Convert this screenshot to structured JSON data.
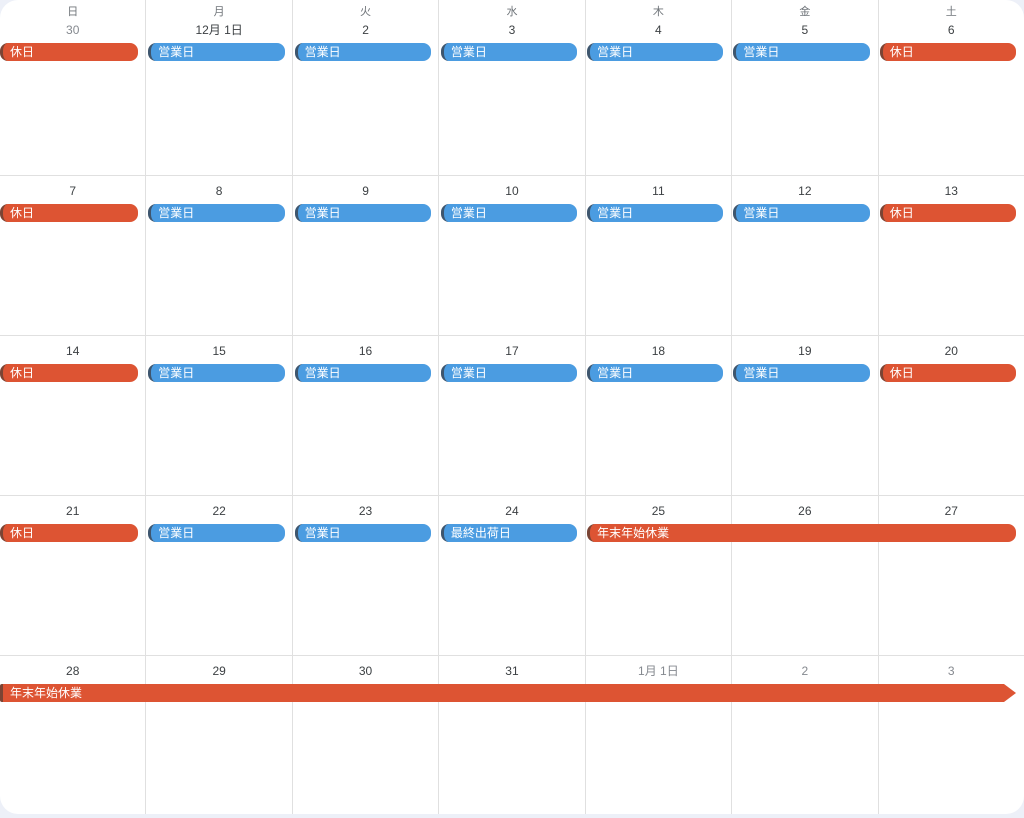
{
  "calendar": {
    "weekday_headers": [
      "日",
      "月",
      "火",
      "水",
      "木",
      "金",
      "土"
    ],
    "event_labels": {
      "holiday": "休日",
      "business_day": "営業日",
      "final_shipping_day": "最終出荷日",
      "year_end_holiday": "年末年始休業"
    },
    "weeks": [
      {
        "days": [
          {
            "date": "30",
            "out_of_month": true
          },
          {
            "date": "12月 1日",
            "out_of_month": false
          },
          {
            "date": "2",
            "out_of_month": false
          },
          {
            "date": "3",
            "out_of_month": false
          },
          {
            "date": "4",
            "out_of_month": false
          },
          {
            "date": "5",
            "out_of_month": false
          },
          {
            "date": "6",
            "out_of_month": false
          }
        ],
        "events": [
          {
            "label": "休日",
            "color": "orange",
            "col": 0,
            "span": 1
          },
          {
            "label": "営業日",
            "color": "blue",
            "col": 1,
            "span": 1
          },
          {
            "label": "営業日",
            "color": "blue",
            "col": 2,
            "span": 1
          },
          {
            "label": "営業日",
            "color": "blue",
            "col": 3,
            "span": 1
          },
          {
            "label": "営業日",
            "color": "blue",
            "col": 4,
            "span": 1
          },
          {
            "label": "営業日",
            "color": "blue",
            "col": 5,
            "span": 1
          },
          {
            "label": "休日",
            "color": "orange",
            "col": 6,
            "span": 1
          }
        ]
      },
      {
        "days": [
          {
            "date": "7",
            "out_of_month": false
          },
          {
            "date": "8",
            "out_of_month": false
          },
          {
            "date": "9",
            "out_of_month": false
          },
          {
            "date": "10",
            "out_of_month": false
          },
          {
            "date": "11",
            "out_of_month": false
          },
          {
            "date": "12",
            "out_of_month": false
          },
          {
            "date": "13",
            "out_of_month": false
          }
        ],
        "events": [
          {
            "label": "休日",
            "color": "orange",
            "col": 0,
            "span": 1
          },
          {
            "label": "営業日",
            "color": "blue",
            "col": 1,
            "span": 1
          },
          {
            "label": "営業日",
            "color": "blue",
            "col": 2,
            "span": 1
          },
          {
            "label": "営業日",
            "color": "blue",
            "col": 3,
            "span": 1
          },
          {
            "label": "営業日",
            "color": "blue",
            "col": 4,
            "span": 1
          },
          {
            "label": "営業日",
            "color": "blue",
            "col": 5,
            "span": 1
          },
          {
            "label": "休日",
            "color": "orange",
            "col": 6,
            "span": 1
          }
        ]
      },
      {
        "days": [
          {
            "date": "14",
            "out_of_month": false
          },
          {
            "date": "15",
            "out_of_month": false
          },
          {
            "date": "16",
            "out_of_month": false
          },
          {
            "date": "17",
            "out_of_month": false
          },
          {
            "date": "18",
            "out_of_month": false
          },
          {
            "date": "19",
            "out_of_month": false
          },
          {
            "date": "20",
            "out_of_month": false
          }
        ],
        "events": [
          {
            "label": "休日",
            "color": "orange",
            "col": 0,
            "span": 1
          },
          {
            "label": "営業日",
            "color": "blue",
            "col": 1,
            "span": 1
          },
          {
            "label": "営業日",
            "color": "blue",
            "col": 2,
            "span": 1
          },
          {
            "label": "営業日",
            "color": "blue",
            "col": 3,
            "span": 1
          },
          {
            "label": "営業日",
            "color": "blue",
            "col": 4,
            "span": 1
          },
          {
            "label": "営業日",
            "color": "blue",
            "col": 5,
            "span": 1
          },
          {
            "label": "休日",
            "color": "orange",
            "col": 6,
            "span": 1
          }
        ]
      },
      {
        "days": [
          {
            "date": "21",
            "out_of_month": false
          },
          {
            "date": "22",
            "out_of_month": false
          },
          {
            "date": "23",
            "out_of_month": false
          },
          {
            "date": "24",
            "out_of_month": false
          },
          {
            "date": "25",
            "out_of_month": false
          },
          {
            "date": "26",
            "out_of_month": false
          },
          {
            "date": "27",
            "out_of_month": false
          }
        ],
        "events": [
          {
            "label": "休日",
            "color": "orange",
            "col": 0,
            "span": 1
          },
          {
            "label": "営業日",
            "color": "blue",
            "col": 1,
            "span": 1
          },
          {
            "label": "営業日",
            "color": "blue",
            "col": 2,
            "span": 1
          },
          {
            "label": "最終出荷日",
            "color": "blue",
            "col": 3,
            "span": 1
          },
          {
            "label": "年末年始休業",
            "color": "orange",
            "col": 4,
            "span": 3
          }
        ]
      },
      {
        "days": [
          {
            "date": "28",
            "out_of_month": false
          },
          {
            "date": "29",
            "out_of_month": false
          },
          {
            "date": "30",
            "out_of_month": false
          },
          {
            "date": "31",
            "out_of_month": false
          },
          {
            "date": "1月 1日",
            "out_of_month": true
          },
          {
            "date": "2",
            "out_of_month": true
          },
          {
            "date": "3",
            "out_of_month": true
          }
        ],
        "events": [
          {
            "label": "年末年始休業",
            "color": "orange",
            "col": 0,
            "span": 7,
            "left_edge": "flat",
            "right_edge": "arrow"
          }
        ]
      }
    ]
  },
  "colors": {
    "event_orange": "#DD5433",
    "event_orange_accent": "#7A4434",
    "event_blue": "#4B9CE1",
    "event_blue_accent": "#3E566E",
    "event_text": "#FFFFFF",
    "grid_line": "#E0E0E0",
    "page_background": "#EDF0F8",
    "panel_background": "#FFFFFF",
    "weekday_text": "#70757A",
    "date_text": "#3C4043",
    "date_text_out_of_month": "#85898F"
  }
}
